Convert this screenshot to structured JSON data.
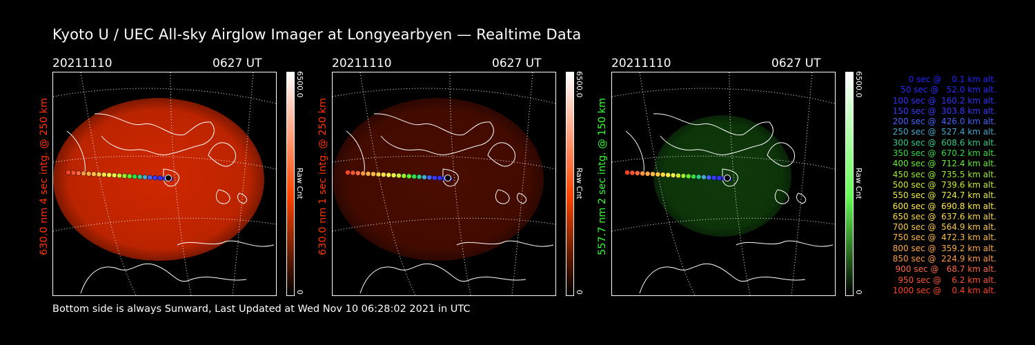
{
  "title": "Kyoto U / UEC All-sky Airglow Imager at Longyearbyen — Realtime Data",
  "footer": "Bottom side is always Sunward, Last Updated at Wed Nov 10 06:28:02 2021 in UTC",
  "panels": [
    {
      "date": "20211110",
      "time": "0627 UT",
      "ylabel": "630.0 nm 4 sec intg. @ 250 km",
      "label_color": "#ff3300",
      "cbar_max": "6500.0",
      "cbar_min": "0",
      "cbar_label": "Raw Cnt",
      "glow": "#d02800",
      "glow_opacity": 0.9,
      "cbar_color": "#ff4400"
    },
    {
      "date": "20211110",
      "time": "0627 UT",
      "ylabel": "630.0 nm 1 sec intg. @ 250 km",
      "label_color": "#ff3300",
      "cbar_max": "6500.0",
      "cbar_min": "0",
      "cbar_label": "Raw Cnt",
      "glow": "#4a0c00",
      "glow_opacity": 0.9,
      "cbar_color": "#ff4400"
    },
    {
      "date": "20211110",
      "time": "0627 UT",
      "ylabel": "557.7 nm 2 sec intg. @ 150 km",
      "label_color": "#33ff33",
      "cbar_max": "6500.0",
      "cbar_min": "0",
      "cbar_label": "Raw Cnt",
      "glow": "#0e3a0a",
      "glow_opacity": 0.9,
      "cbar_color": "#66ff55"
    }
  ],
  "legend": [
    {
      "text": "0 sec @    0.1 km alt.",
      "color": "#2222ff"
    },
    {
      "text": "50 sec @   52.0 km alt.",
      "color": "#2a2aff"
    },
    {
      "text": "100 sec @  160.2 km alt.",
      "color": "#3333ff"
    },
    {
      "text": "150 sec @  303.8 km alt.",
      "color": "#3a3aff"
    },
    {
      "text": "200 sec @  426.0 km alt.",
      "color": "#4466ff"
    },
    {
      "text": "250 sec @  527.4 km alt.",
      "color": "#44aacc"
    },
    {
      "text": "300 sec @  608.6 km alt.",
      "color": "#33cc88"
    },
    {
      "text": "350 sec @  670.2 km alt.",
      "color": "#33dd44"
    },
    {
      "text": "400 sec @  712.4 km alt.",
      "color": "#66ee33"
    },
    {
      "text": "450 sec @  735.5 km alt.",
      "color": "#99ee33"
    },
    {
      "text": "500 sec @  739.6 km alt.",
      "color": "#ccee33"
    },
    {
      "text": "550 sec @  724.7 km alt.",
      "color": "#eeee44"
    },
    {
      "text": "600 sec @  690.8 km alt.",
      "color": "#ffee44"
    },
    {
      "text": "650 sec @  637.6 km alt.",
      "color": "#ffdd44"
    },
    {
      "text": "700 sec @  564.9 km alt.",
      "color": "#ffcc44"
    },
    {
      "text": "750 sec @  472.3 km alt.",
      "color": "#ffbb44"
    },
    {
      "text": "800 sec @  359.2 km alt.",
      "color": "#ffaa44"
    },
    {
      "text": "850 sec @  224.9 km alt.",
      "color": "#ff9944"
    },
    {
      "text": "900 sec @   68.7 km alt.",
      "color": "#ff6644"
    },
    {
      "text": "950 sec @    6.2 km alt.",
      "color": "#ff5533"
    },
    {
      "text": "1000 sec @    0.4 km alt.",
      "color": "#ff4422"
    }
  ],
  "track_colors": [
    "#ff4422",
    "#ff5533",
    "#ff6644",
    "#ff9944",
    "#ffaa44",
    "#ffbb44",
    "#ffcc44",
    "#ffdd44",
    "#ffee44",
    "#eeee44",
    "#ccee33",
    "#99ee33",
    "#66ee33",
    "#33dd44",
    "#33cc88",
    "#44aacc",
    "#4466ff",
    "#3a3aff",
    "#3333ff",
    "#2a2aff",
    "#2222ff"
  ]
}
